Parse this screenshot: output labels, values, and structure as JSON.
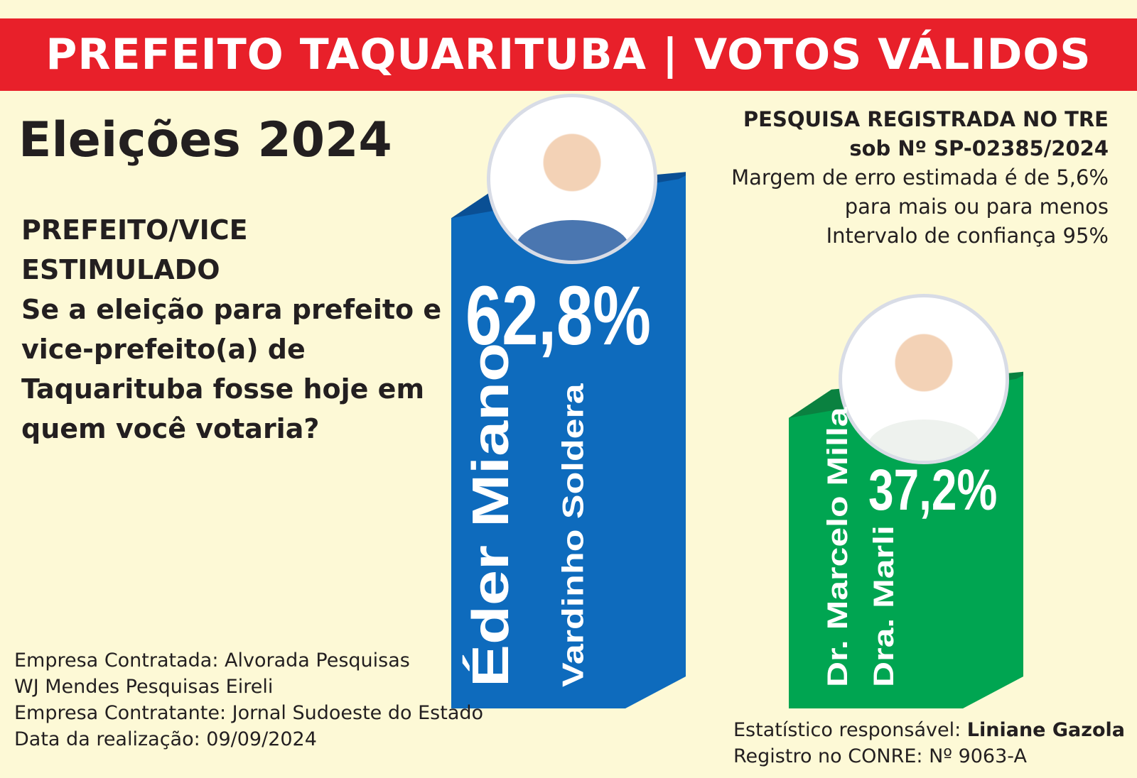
{
  "header": {
    "banner": "PREFEITO TAQUARITUBA  |  VOTOS VÁLIDOS"
  },
  "title": "Eleições 2024",
  "question": {
    "line1": "PREFEITO/VICE",
    "line2": "ESTIMULADO",
    "text": "Se a eleição para prefeito e vice-prefeito(a) de Taquarituba fosse hoje em quem você votaria?"
  },
  "registration": {
    "line1": "PESQUISA REGISTRADA NO TRE",
    "line2": "sob Nº SP-02385/2024",
    "line3": "Margem de erro estimada é de 5,6%",
    "line4": "para mais ou para menos",
    "line5": "Intervalo de confiança 95%"
  },
  "footer_left": [
    "Empresa Contratada: Alvorada Pesquisas",
    "WJ Mendes Pesquisas Eireli",
    "Empresa Contratante: Jornal Sudoeste do Estado",
    "Data da realização: 09/09/2024"
  ],
  "footer_right": {
    "stat_label": "Estatístico responsável: ",
    "stat_name": "Liniane Gazola",
    "conre": "Registro no CONRE: Nº 9063-A"
  },
  "chart_data": {
    "type": "bar",
    "categories": [
      "Éder Miano / Vardinho Soldera",
      "Dr. Marcelo Milla / Dra. Marli"
    ],
    "values": [
      62.8,
      37.2
    ],
    "unit": "%",
    "bars": [
      {
        "candidate": "Éder Miano",
        "vice": "Vardinho Soldera",
        "value": 62.8,
        "label": "62,8%",
        "color": "#0e6bbd",
        "dark": "#0a4f94"
      },
      {
        "candidate": "Dr. Marcelo Milla",
        "vice": "Dra. Marli",
        "value": 37.2,
        "label": "37,2%",
        "color": "#00a551",
        "dark": "#0a8140"
      }
    ]
  }
}
